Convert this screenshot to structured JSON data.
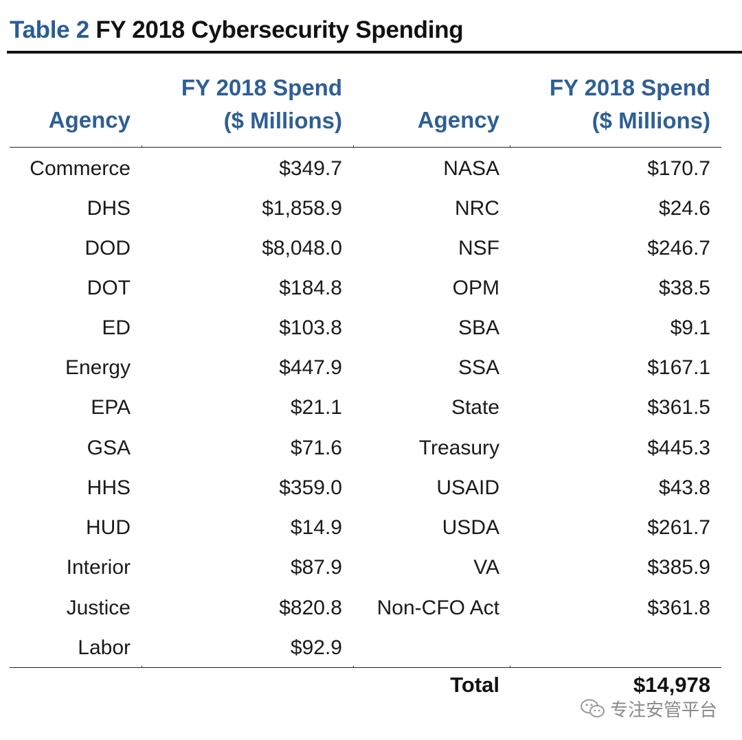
{
  "title": {
    "number": "Table 2",
    "text": "FY 2018 Cybersecurity Spending"
  },
  "headers": {
    "agency": "Agency",
    "spend_line1": "FY 2018 Spend",
    "spend_line2": "($ Millions)"
  },
  "rows": [
    {
      "left_agency": "Commerce",
      "left_spend": "$349.7",
      "right_agency": "NASA",
      "right_spend": "$170.7"
    },
    {
      "left_agency": "DHS",
      "left_spend": "$1,858.9",
      "right_agency": "NRC",
      "right_spend": "$24.6"
    },
    {
      "left_agency": "DOD",
      "left_spend": "$8,048.0",
      "right_agency": "NSF",
      "right_spend": "$246.7"
    },
    {
      "left_agency": "DOT",
      "left_spend": "$184.8",
      "right_agency": "OPM",
      "right_spend": "$38.5"
    },
    {
      "left_agency": "ED",
      "left_spend": "$103.8",
      "right_agency": "SBA",
      "right_spend": "$9.1"
    },
    {
      "left_agency": "Energy",
      "left_spend": "$447.9",
      "right_agency": "SSA",
      "right_spend": "$167.1"
    },
    {
      "left_agency": "EPA",
      "left_spend": "$21.1",
      "right_agency": "State",
      "right_spend": "$361.5"
    },
    {
      "left_agency": "GSA",
      "left_spend": "$71.6",
      "right_agency": "Treasury",
      "right_spend": "$445.3"
    },
    {
      "left_agency": "HHS",
      "left_spend": "$359.0",
      "right_agency": "USAID",
      "right_spend": "$43.8"
    },
    {
      "left_agency": "HUD",
      "left_spend": "$14.9",
      "right_agency": "USDA",
      "right_spend": "$261.7"
    },
    {
      "left_agency": "Interior",
      "left_spend": "$87.9",
      "right_agency": "VA",
      "right_spend": "$385.9"
    },
    {
      "left_agency": "Justice",
      "left_spend": "$820.8",
      "right_agency": "Non-CFO Act",
      "right_spend": "$361.8"
    },
    {
      "left_agency": "Labor",
      "left_spend": "$92.9",
      "right_agency": "",
      "right_spend": ""
    }
  ],
  "total": {
    "label": "Total",
    "value": "$14,978"
  },
  "watermark": {
    "icon": "wechat-icon",
    "text": "专注安管平台"
  }
}
